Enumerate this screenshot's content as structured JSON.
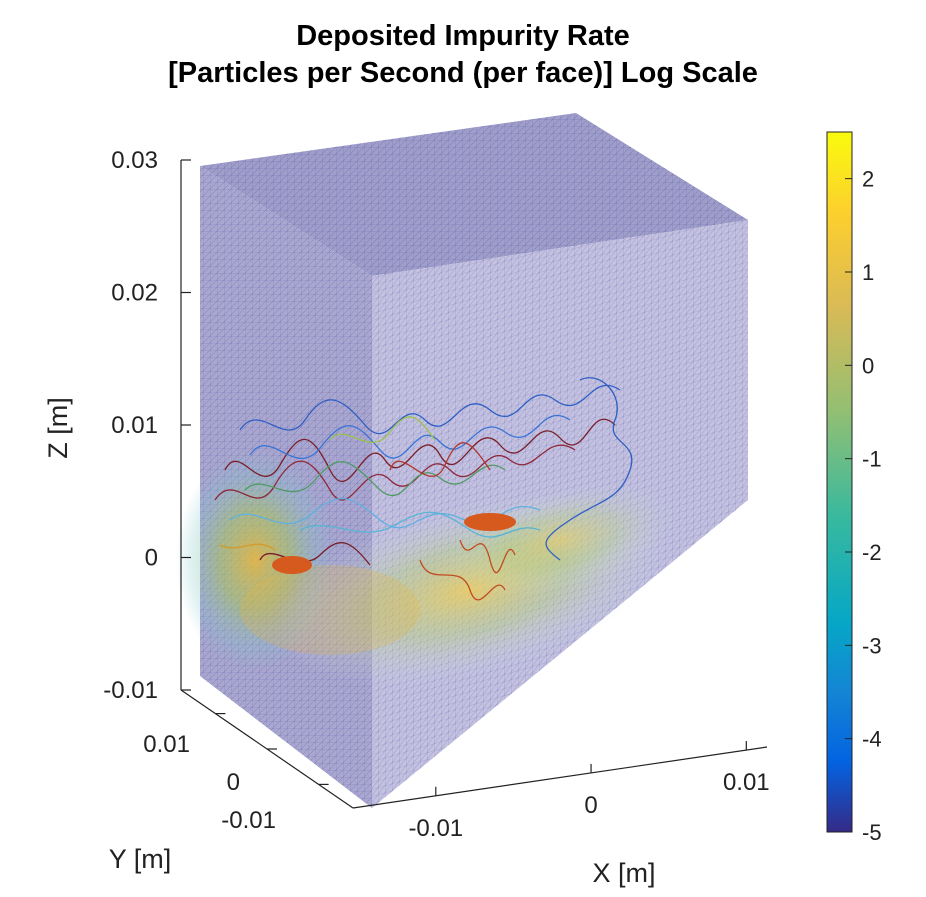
{
  "chart_data": {
    "type": "3d-surface",
    "title_lines": [
      "Deposited Impurity Rate",
      "[Particles per Second (per face)] Log Scale"
    ],
    "xlabel": "X [m]",
    "ylabel": "Y [m]",
    "zlabel": "Z [m]",
    "x_ticks": [
      {
        "value": -0.01,
        "label": "-0.01"
      },
      {
        "value": 0,
        "label": "0"
      },
      {
        "value": 0.01,
        "label": "0.01"
      }
    ],
    "y_ticks": [
      {
        "value": 0.01,
        "label": "0.01"
      },
      {
        "value": 0,
        "label": "0"
      },
      {
        "value": -0.01,
        "label": "-0.01"
      }
    ],
    "z_ticks": [
      {
        "value": 0.03,
        "label": "0.03"
      },
      {
        "value": 0.02,
        "label": "0.02"
      },
      {
        "value": 0.01,
        "label": "0.01"
      },
      {
        "value": 0,
        "label": "0"
      },
      {
        "value": -0.01,
        "label": "-0.01"
      }
    ],
    "colorbar": {
      "min": -5,
      "max": 2.5,
      "colormap": "parula",
      "ticks": [
        {
          "value": 2,
          "label": "2"
        },
        {
          "value": 1,
          "label": "1"
        },
        {
          "value": 0,
          "label": "0"
        },
        {
          "value": -1,
          "label": "-1"
        },
        {
          "value": -2,
          "label": "-2"
        },
        {
          "value": -3,
          "label": "-3"
        },
        {
          "value": -4,
          "label": "-4"
        },
        {
          "value": -5,
          "label": "-5"
        }
      ]
    },
    "colors": {
      "background_face": "#b4b0d2",
      "mesh": "#5a5aa8",
      "trajectory_dark": "#7a1f2b",
      "trajectory_blue": "#2f5fc4",
      "deposit_hot": "#d65a1e"
    }
  }
}
